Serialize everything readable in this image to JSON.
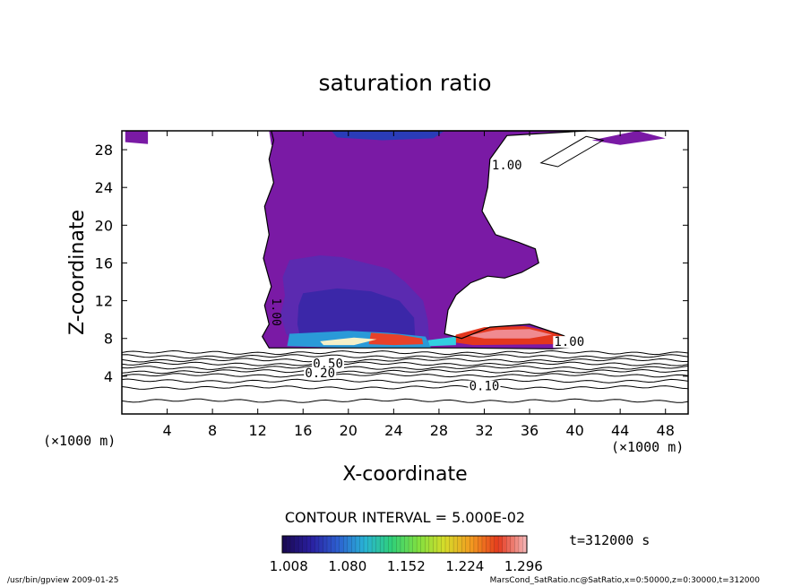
{
  "chart_data": {
    "type": "heatmap",
    "title": "saturation ratio",
    "xlabel": "X-coordinate",
    "ylabel": "Z-coordinate",
    "x_unit": "(×1000 m)",
    "y_unit": "(×1000 m)",
    "xlim": [
      0,
      50
    ],
    "ylim": [
      0,
      30
    ],
    "x_ticks": [
      4,
      8,
      12,
      16,
      20,
      24,
      28,
      32,
      36,
      40,
      44,
      48
    ],
    "y_ticks": [
      4,
      8,
      12,
      16,
      20,
      24,
      28
    ],
    "contour_interval_text": "CONTOUR INTERVAL = 5.000E-02",
    "time_text": "t=312000 s",
    "colorbar": {
      "range": [
        1.0,
        1.3
      ],
      "tick_labels": [
        "1.008",
        "1.080",
        "1.152",
        "1.224",
        "1.296"
      ],
      "tick_values": [
        1.008,
        1.08,
        1.152,
        1.224,
        1.296
      ],
      "colors": [
        "#1a0a55",
        "#2a1fa0",
        "#2d5fd0",
        "#29b2d6",
        "#2fd07a",
        "#7fe040",
        "#d6dc2a",
        "#f29a20",
        "#e53a1e",
        "#f4b0b0"
      ]
    },
    "contour_labels": [
      {
        "text": "1.00",
        "x": 34.0,
        "y": 26.0
      },
      {
        "text": "1.00",
        "x": 13.3,
        "y": 10.8
      },
      {
        "text": "1.00",
        "x": 39.5,
        "y": 7.3
      },
      {
        "text": "0.50",
        "x": 18.2,
        "y": 5.0
      },
      {
        "text": "0.20",
        "x": 17.5,
        "y": 4.0
      },
      {
        "text": "0.10",
        "x": 32.0,
        "y": 2.6
      }
    ],
    "fields": [
      {
        "name": "purple",
        "value": 1.02
      },
      {
        "name": "violet",
        "value": 1.05
      },
      {
        "name": "blue",
        "value": 1.09
      },
      {
        "name": "red",
        "value": 1.25
      }
    ]
  },
  "footer": {
    "left": "/usr/bin/gpview  2009-01-25",
    "right": "MarsCond_SatRatio.nc@SatRatio,x=0:50000,z=0:30000,t=312000"
  }
}
